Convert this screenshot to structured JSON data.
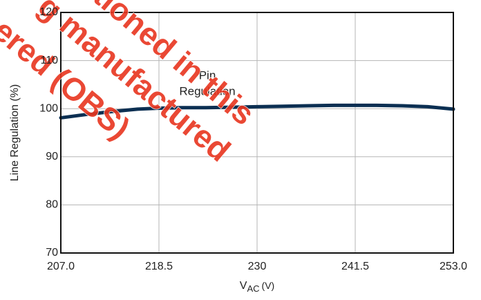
{
  "chart_data": {
    "type": "line",
    "y_label": "Line Regulation (%)",
    "x_label": {
      "symbol": "V",
      "subscript": "AC",
      "unit": "(V)"
    },
    "annotation": [
      "Pin",
      "Regulation"
    ],
    "watermark": [
      "tioned in this",
      "g manufactured",
      "ered (OBS)"
    ],
    "x": [
      207,
      210,
      213,
      216,
      218.5,
      221,
      224,
      227,
      230,
      233,
      236,
      239,
      241.5,
      244,
      247,
      250,
      253
    ],
    "series": [
      {
        "name": "Pin Regulation",
        "color": "#0b2f52",
        "values": [
          98.1,
          98.8,
          99.4,
          99.9,
          100.1,
          100.2,
          100.2,
          100.3,
          100.4,
          100.5,
          100.6,
          100.7,
          100.7,
          100.7,
          100.6,
          100.4,
          99.9
        ]
      }
    ],
    "xlim": [
      207,
      253
    ],
    "xticks": [
      {
        "value": 207,
        "label": "207.0"
      },
      218.5,
      230,
      241.5,
      {
        "value": 253,
        "label": "253.0"
      }
    ],
    "ylim": [
      70,
      120
    ],
    "yticks": [
      70,
      80,
      90,
      100,
      110,
      120
    ],
    "grid": true
  }
}
